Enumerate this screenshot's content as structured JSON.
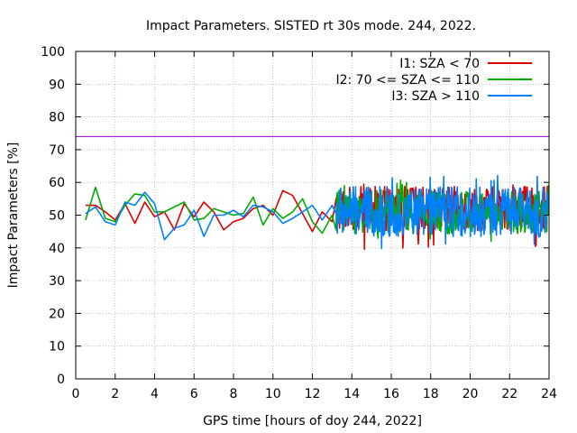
{
  "chart_data": {
    "type": "line",
    "title": "Impact Parameters. SISTED rt 30s mode. 244, 2022.",
    "xlabel": "GPS time [hours of doy 244, 2022]",
    "ylabel": "Impact Parameters [%]",
    "xlim": [
      0,
      24
    ],
    "ylim": [
      0,
      100
    ],
    "xticks": [
      0,
      2,
      4,
      6,
      8,
      10,
      12,
      14,
      16,
      18,
      20,
      22,
      24
    ],
    "yticks": [
      0,
      10,
      20,
      30,
      40,
      50,
      60,
      70,
      80,
      90,
      100
    ],
    "grid": true,
    "legend_position": "top-right",
    "reference_line": {
      "y": 74,
      "color": "#9400d3"
    },
    "series": [
      {
        "name": "I1: SZA < 70",
        "color": "#dd0000",
        "x": [
          0.5,
          1.0,
          1.5,
          2.0,
          2.5,
          3.0,
          3.5,
          4.0,
          4.5,
          5.0,
          5.5,
          6.0,
          6.5,
          7.0,
          7.5,
          8.0,
          8.5,
          9.0,
          9.5,
          10.0,
          10.5,
          11.0,
          11.5,
          12.0,
          12.5,
          13.0
        ],
        "values": [
          53,
          53,
          51,
          48.5,
          53.5,
          47.5,
          54,
          49.5,
          51,
          45.5,
          53.5,
          49.5,
          54,
          51,
          45.5,
          48,
          49,
          52,
          53,
          50,
          57.5,
          56,
          50.5,
          45,
          51,
          48
        ],
        "dense_segment": {
          "x_start": 13.2,
          "x_end": 24,
          "mean": 52,
          "min": 39.5,
          "max": 59.5
        }
      },
      {
        "name": "I2: 70 <= SZA <= 110",
        "color": "#00aa00",
        "x": [
          0.5,
          1.0,
          1.5,
          2.0,
          2.5,
          3.0,
          3.5,
          4.0,
          4.5,
          5.0,
          5.5,
          6.0,
          6.5,
          7.0,
          7.5,
          8.0,
          8.5,
          9.0,
          9.5,
          10.0,
          10.5,
          11.0,
          11.5,
          12.0,
          12.5,
          13.0
        ],
        "values": [
          48.5,
          58.5,
          49,
          48,
          53,
          56.5,
          56,
          51,
          51,
          52.5,
          54,
          48.5,
          49,
          52,
          51,
          50,
          50.5,
          55.5,
          47,
          52,
          49,
          51,
          55,
          48,
          44.5,
          50
        ],
        "dense_segment": {
          "x_start": 13.2,
          "x_end": 24,
          "mean": 51,
          "min": 41,
          "max": 61
        }
      },
      {
        "name": "I3: SZA > 110",
        "color": "#0080ff",
        "x": [
          0.5,
          1.0,
          1.5,
          2.0,
          2.5,
          3.0,
          3.5,
          4.0,
          4.5,
          5.0,
          5.5,
          6.0,
          6.5,
          7.0,
          7.5,
          8.0,
          8.5,
          9.0,
          9.5,
          10.0,
          10.5,
          11.0,
          11.5,
          12.0,
          12.5,
          13.0
        ],
        "values": [
          50.5,
          52.5,
          48,
          47,
          54,
          53,
          57,
          53.5,
          42.5,
          46,
          47,
          51.5,
          43.5,
          50,
          50,
          51.5,
          49.5,
          53,
          52.5,
          51,
          47.5,
          49,
          51,
          53,
          48.5,
          53
        ],
        "dense_segment": {
          "x_start": 13.2,
          "x_end": 24,
          "mean": 51,
          "min": 39.5,
          "max": 62.5
        }
      }
    ]
  }
}
